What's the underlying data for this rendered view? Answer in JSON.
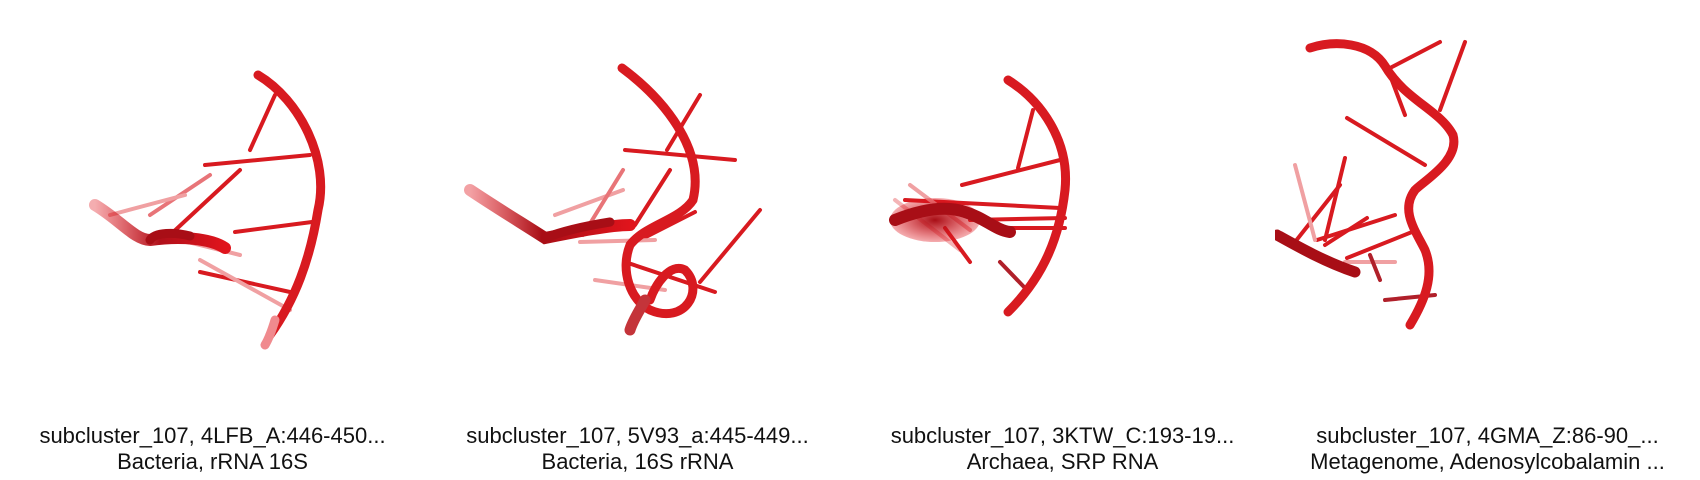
{
  "panels": [
    {
      "title": "subcluster_107, 4LFB_A:446-450...",
      "subtitle": "Bacteria, rRNA 16S",
      "image": "rna-structure-render-red",
      "color": "#e0141c"
    },
    {
      "title": "subcluster_107, 5V93_a:445-449...",
      "subtitle": "Bacteria, 16S rRNA",
      "image": "rna-structure-render-red",
      "color": "#e0141c"
    },
    {
      "title": "subcluster_107, 3KTW_C:193-19...",
      "subtitle": "Archaea, SRP RNA",
      "image": "rna-structure-render-red",
      "color": "#e0141c"
    },
    {
      "title": "subcluster_107, 4GMA_Z:86-90_...",
      "subtitle": "Metagenome, Adenosylcobalamin ...",
      "image": "rna-structure-render-red",
      "color": "#e0141c"
    }
  ]
}
